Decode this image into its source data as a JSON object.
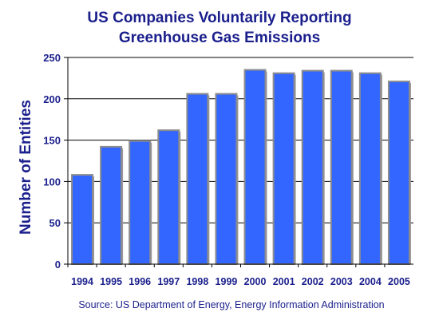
{
  "chart_data": {
    "type": "bar",
    "title_lines": [
      "US Companies Voluntarily Reporting",
      "Greenhouse Gas Emissions"
    ],
    "ylabel": "Number of Entities",
    "xlabel": "",
    "categories": [
      "1994",
      "1995",
      "1996",
      "1997",
      "1998",
      "1999",
      "2000",
      "2001",
      "2002",
      "2003",
      "2004",
      "2005"
    ],
    "values": [
      108,
      142,
      149,
      162,
      206,
      206,
      235,
      231,
      234,
      234,
      231,
      221
    ],
    "ylim": [
      0,
      250
    ],
    "yticks": [
      0,
      50,
      100,
      150,
      200,
      250
    ],
    "grid": "horizontal",
    "source": "Source: US Department of Energy, Energy Information Administration",
    "colors": {
      "bar": "#3366ff",
      "bar_edge": "#8c8c8c",
      "text": "#1a1f8c",
      "axis": "#000000",
      "grid": "#000000"
    }
  }
}
